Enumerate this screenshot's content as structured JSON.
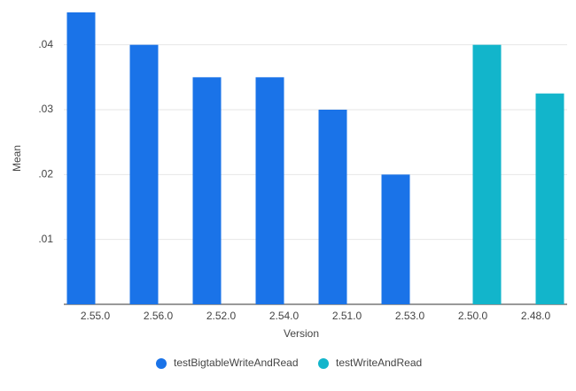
{
  "chart_data": {
    "type": "bar",
    "x_label": "Version",
    "y_label": "Mean",
    "categories": [
      "2.55.0",
      "2.56.0",
      "2.52.0",
      "2.54.0",
      "2.51.0",
      "2.53.0",
      "2.50.0",
      "2.48.0"
    ],
    "series": [
      {
        "name": "testBigtableWriteAndRead",
        "color": "#1a73e8",
        "values": [
          0.045,
          0.04,
          0.035,
          0.035,
          0.03,
          0.02,
          null,
          null
        ]
      },
      {
        "name": "testWriteAndRead",
        "color": "#12b5cb",
        "values": [
          null,
          null,
          null,
          null,
          null,
          null,
          0.04,
          0.0325
        ]
      }
    ],
    "ylim": [
      0,
      0.045
    ],
    "yticks": [
      {
        "value": 0.01,
        "label": ".01"
      },
      {
        "value": 0.02,
        "label": ".02"
      },
      {
        "value": 0.03,
        "label": ".03"
      },
      {
        "value": 0.04,
        "label": ".04"
      }
    ],
    "grid": true,
    "legend": "bottom"
  }
}
